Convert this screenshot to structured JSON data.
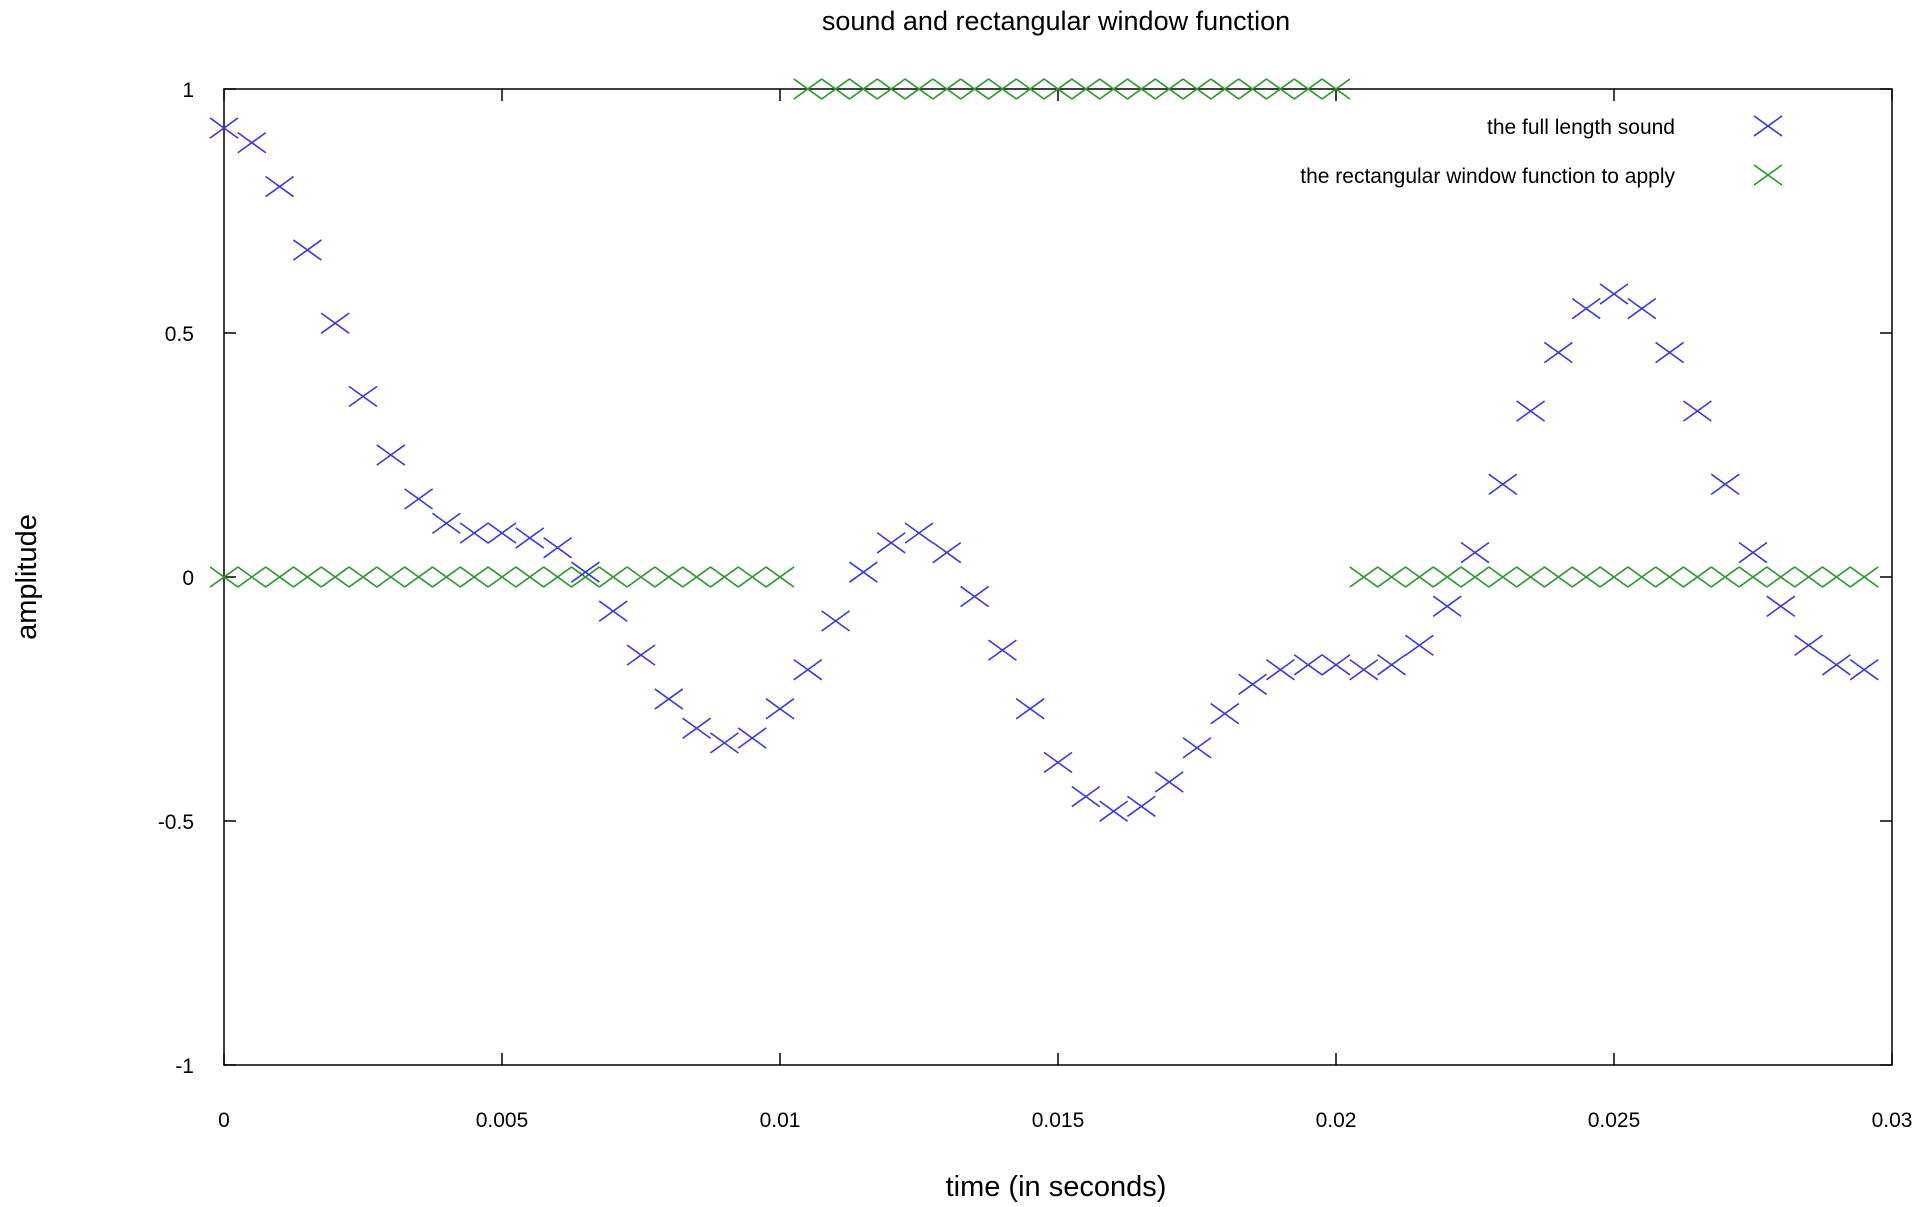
{
  "chart_data": {
    "type": "scatter",
    "title": "sound and rectangular window function",
    "xlabel": "time (in seconds)",
    "ylabel": "amplitude",
    "xlim": [
      0,
      0.03
    ],
    "ylim": [
      -1,
      1
    ],
    "xticks": [
      "0",
      "0.005",
      "0.01",
      "0.015",
      "0.02",
      "0.025",
      "0.03"
    ],
    "yticks": [
      "1",
      "0.5",
      "0",
      "-0.5",
      "-1"
    ],
    "grid": false,
    "legend_position": "top-right",
    "marker": "x",
    "series": [
      {
        "name": "the full length sound",
        "color": "#3a3ad6",
        "x": [
          0,
          0.0005,
          0.001,
          0.0015,
          0.002,
          0.0025,
          0.003,
          0.0035,
          0.004,
          0.0045,
          0.005,
          0.0055,
          0.006,
          0.0065,
          0.007,
          0.0075,
          0.008,
          0.0085,
          0.009,
          0.0095,
          0.01,
          0.0105,
          0.011,
          0.0115,
          0.012,
          0.0125,
          0.013,
          0.0135,
          0.014,
          0.0145,
          0.015,
          0.0155,
          0.016,
          0.0165,
          0.017,
          0.0175,
          0.018,
          0.0185,
          0.019,
          0.0195,
          0.02,
          0.0205,
          0.021,
          0.0215,
          0.022,
          0.0225,
          0.023,
          0.0235,
          0.024,
          0.0245,
          0.025,
          0.0255,
          0.026,
          0.0265,
          0.027,
          0.0275,
          0.028,
          0.0285,
          0.029,
          0.0295
        ],
        "y": [
          0.92,
          0.89,
          0.8,
          0.67,
          0.52,
          0.37,
          0.25,
          0.16,
          0.11,
          0.09,
          0.09,
          0.08,
          0.06,
          0.01,
          -0.07,
          -0.16,
          -0.25,
          -0.31,
          -0.34,
          -0.33,
          -0.27,
          -0.19,
          -0.09,
          0.01,
          0.07,
          0.09,
          0.05,
          -0.04,
          -0.15,
          -0.27,
          -0.38,
          -0.45,
          -0.48,
          -0.47,
          -0.42,
          -0.35,
          -0.28,
          -0.22,
          -0.19,
          -0.18,
          -0.18,
          -0.19,
          -0.18,
          -0.14,
          -0.06,
          0.05,
          0.19,
          0.34,
          0.46,
          0.55,
          0.58,
          0.55,
          0.46,
          0.34,
          0.19,
          0.05,
          -0.06,
          -0.14,
          -0.18,
          -0.19
        ]
      },
      {
        "name": "the rectangular window function to apply",
        "color": "#2e9a2e",
        "x": [
          0,
          0.0005,
          0.001,
          0.0015,
          0.002,
          0.0025,
          0.003,
          0.0035,
          0.004,
          0.0045,
          0.005,
          0.0055,
          0.006,
          0.0065,
          0.007,
          0.0075,
          0.008,
          0.0085,
          0.009,
          0.0095,
          0.01,
          0.0105,
          0.011,
          0.0115,
          0.012,
          0.0125,
          0.013,
          0.0135,
          0.014,
          0.0145,
          0.015,
          0.0155,
          0.016,
          0.0165,
          0.017,
          0.0175,
          0.018,
          0.0185,
          0.019,
          0.0195,
          0.02,
          0.0205,
          0.021,
          0.0215,
          0.022,
          0.0225,
          0.023,
          0.0235,
          0.024,
          0.0245,
          0.025,
          0.0255,
          0.026,
          0.0265,
          0.027,
          0.0275,
          0.028,
          0.0285,
          0.029,
          0.0295
        ],
        "y": [
          0,
          0,
          0,
          0,
          0,
          0,
          0,
          0,
          0,
          0,
          0,
          0,
          0,
          0,
          0,
          0,
          0,
          0,
          0,
          0,
          0,
          1,
          1,
          1,
          1,
          1,
          1,
          1,
          1,
          1,
          1,
          1,
          1,
          1,
          1,
          1,
          1,
          1,
          1,
          1,
          1,
          0,
          0,
          0,
          0,
          0,
          0,
          0,
          0,
          0,
          0,
          0,
          0,
          0,
          0,
          0,
          0,
          0,
          0,
          0
        ]
      }
    ]
  }
}
